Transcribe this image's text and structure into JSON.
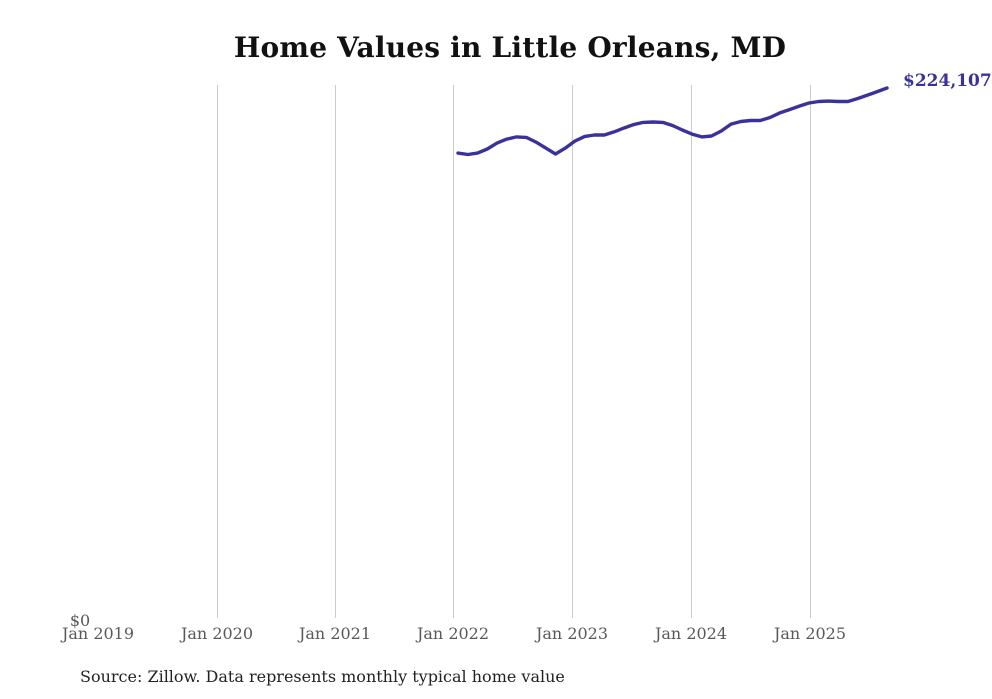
{
  "title": "Home Values in Little Orleans, MD",
  "y_zero_label": "$0",
  "end_label": "$224,107",
  "source_note": "Source: Zillow. Data represents monthly typical home value",
  "colors": {
    "line": "#39329b",
    "end_label": "#39329b",
    "gridline": "#cccccc",
    "tick_text": "#595959",
    "title_text": "#111111",
    "source_text": "#222222",
    "background": "#ffffff"
  },
  "chart_data": {
    "type": "line",
    "title": "Home Values in Little Orleans, MD",
    "series_name": "Monthly typical home value (USD)",
    "x": [
      "2022-01",
      "2022-02",
      "2022-03",
      "2022-04",
      "2022-05",
      "2022-06",
      "2022-07",
      "2022-08",
      "2022-09",
      "2022-10",
      "2022-11",
      "2022-12",
      "2023-01",
      "2023-02",
      "2023-03",
      "2023-04",
      "2023-05",
      "2023-06",
      "2023-07",
      "2023-08",
      "2023-09",
      "2023-10",
      "2023-11",
      "2023-12",
      "2024-01",
      "2024-02",
      "2024-03",
      "2024-04",
      "2024-05",
      "2024-06",
      "2024-07",
      "2024-08",
      "2024-09",
      "2024-10",
      "2024-11",
      "2024-12",
      "2025-01",
      "2025-02",
      "2025-03",
      "2025-04",
      "2025-05",
      "2025-06",
      "2025-07",
      "2025-08",
      "2025-09"
    ],
    "values": [
      196700,
      196100,
      196700,
      198400,
      200900,
      202600,
      203500,
      203300,
      201300,
      198800,
      196300,
      198800,
      201800,
      203700,
      204300,
      204300,
      205600,
      207200,
      208700,
      209600,
      209800,
      209600,
      208300,
      206400,
      204700,
      203500,
      203900,
      206000,
      208900,
      210000,
      210400,
      210400,
      211700,
      213600,
      215000,
      216500,
      217800,
      218400,
      218600,
      218400,
      218400,
      219700,
      221100,
      222600,
      224107
    ],
    "last_value_label": "$224,107",
    "x_ticks": [
      {
        "label": "Jan 2019",
        "gridline": false
      },
      {
        "label": "Jan 2020",
        "gridline": true
      },
      {
        "label": "Jan 2021",
        "gridline": true
      },
      {
        "label": "Jan 2022",
        "gridline": true
      },
      {
        "label": "Jan 2023",
        "gridline": true
      },
      {
        "label": "Jan 2024",
        "gridline": true
      },
      {
        "label": "Jan 2025",
        "gridline": true
      }
    ],
    "ylim": [
      0,
      225400
    ],
    "y_tick_labels_visible": [
      "$0"
    ],
    "grid": "vertical-only",
    "legend": "none",
    "xlabel": "",
    "ylabel": ""
  }
}
